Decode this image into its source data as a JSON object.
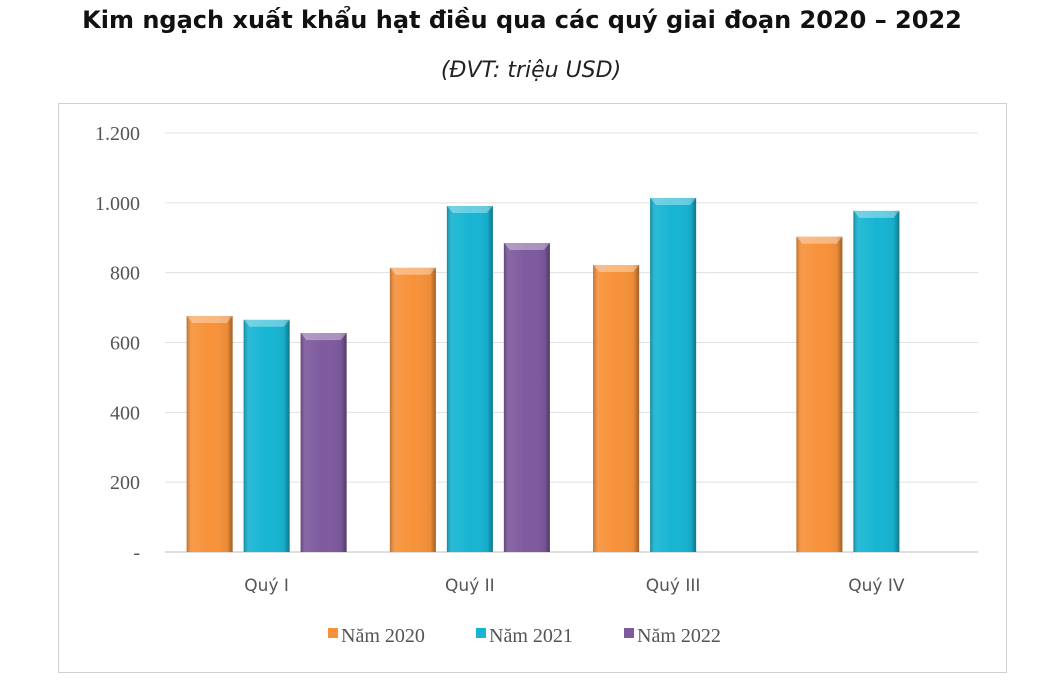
{
  "title": "Kim ngạch xuất khẩu hạt điều qua các quý giai đoạn 2020 – 2022",
  "subtitle": "(ĐVT: triệu USD)",
  "chart_data": {
    "type": "bar",
    "title": "Kim ngạch xuất khẩu hạt điều qua các quý giai đoạn 2020 – 2022",
    "subtitle": "(ĐVT: triệu USD)",
    "categories": [
      "Quý I",
      "Quý II",
      "Quý III",
      "Quý IV"
    ],
    "series": [
      {
        "name": "Năm 2020",
        "color": "#F7923A",
        "values": [
          676,
          814,
          822,
          903
        ]
      },
      {
        "name": "Năm 2021",
        "color": "#17B5D3",
        "values": [
          665,
          991,
          1014,
          977
        ]
      },
      {
        "name": "Năm 2022",
        "color": "#7E5A9E",
        "values": [
          627,
          885,
          null,
          null
        ]
      }
    ],
    "yticks": [
      0,
      200,
      400,
      600,
      800,
      1000,
      1200
    ],
    "ytick_labels": [
      "-",
      "200",
      "400",
      "600",
      "800",
      "1.000",
      "1.200"
    ],
    "ylim": [
      0,
      1200
    ],
    "grid": true,
    "legend": "bottom"
  }
}
